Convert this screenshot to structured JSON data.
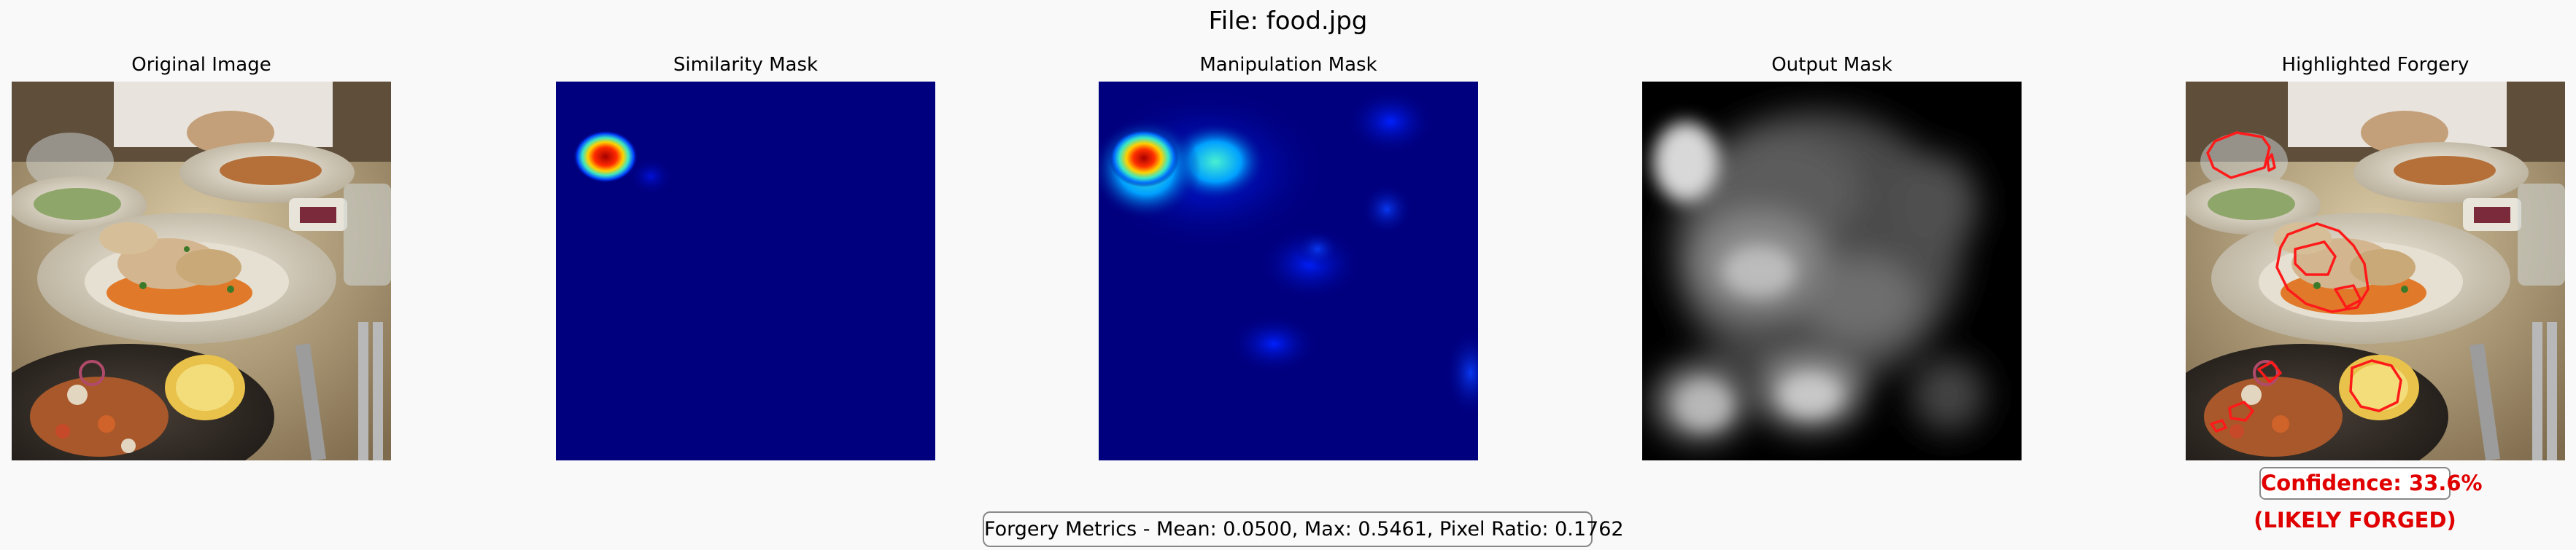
{
  "figure": {
    "title": "File: food.jpg"
  },
  "panels": [
    {
      "id": "original",
      "title": "Original Image",
      "icon": "food-photo-icon"
    },
    {
      "id": "similarity",
      "title": "Similarity Mask",
      "icon": "heatmap-icon"
    },
    {
      "id": "manipulation",
      "title": "Manipulation Mask",
      "icon": "heatmap-icon"
    },
    {
      "id": "output",
      "title": "Output Mask",
      "icon": "grayscale-mask-icon"
    },
    {
      "id": "highlighted",
      "title": "Highlighted Forgery",
      "icon": "food-photo-icon"
    }
  ],
  "result": {
    "confidence_text": "Confidence: 33.6%",
    "verdict_text": "(LIKELY FORGED)",
    "metrics_text": "Forgery Metrics - Mean: 0.0500, Max: 0.5461, Pixel Ratio: 0.1762",
    "confidence_value": 33.6,
    "mean": 0.05,
    "max": 0.5461,
    "pixel_ratio": 0.1762
  },
  "colors": {
    "alert_red": "#e00000",
    "heatmap_background": "#00007f",
    "background": "#f9f9f9"
  }
}
